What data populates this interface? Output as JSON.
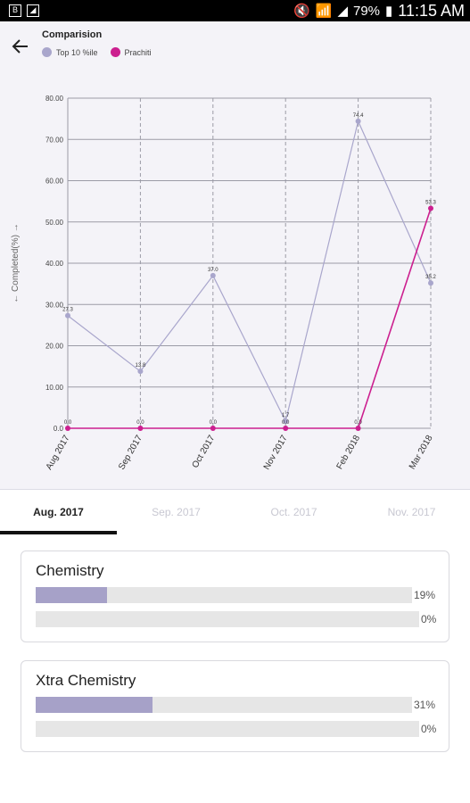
{
  "status_bar": {
    "battery": "79%",
    "time": "11:15 AM"
  },
  "header": {
    "title": "Comparision"
  },
  "legend": [
    {
      "label": "Top 10 %ile",
      "color": "#a9a6cc"
    },
    {
      "label": "Prachiti",
      "color": "#cc1f8f"
    }
  ],
  "chart_data": {
    "type": "line",
    "ylabel": "← Completed(%) →",
    "ylim": [
      0,
      80
    ],
    "yticks": [
      "0.0",
      "10.00",
      "20.00",
      "30.00",
      "40.00",
      "50.00",
      "60.00",
      "70.00",
      "80.00"
    ],
    "categories": [
      "Aug 2017",
      "Sep 2017",
      "Oct 2017",
      "Nov 2017",
      "Feb 2018",
      "Mar 2018"
    ],
    "series": [
      {
        "name": "Top 10 %ile",
        "color": "#a9a6cc",
        "values": [
          27.3,
          13.8,
          37.0,
          1.7,
          74.4,
          35.2
        ],
        "labels": [
          "27.3",
          "13.8",
          "37.0",
          "1.7",
          "74.4",
          "35.2"
        ]
      },
      {
        "name": "Prachiti",
        "color": "#cc1f8f",
        "values": [
          0,
          0,
          0,
          0,
          0,
          53.3
        ],
        "labels": [
          "0.0",
          "0.0",
          "0.0",
          "0.0",
          "0.0",
          "53.3"
        ]
      }
    ]
  },
  "tabs": [
    {
      "label": "Aug. 2017",
      "active": true
    },
    {
      "label": "Sep. 2017",
      "active": false
    },
    {
      "label": "Oct. 2017",
      "active": false
    },
    {
      "label": "Nov. 2017",
      "active": false
    }
  ],
  "subjects": [
    {
      "name": "Chemistry",
      "bars": [
        {
          "value": 19,
          "label": "19%"
        },
        {
          "value": 0,
          "label": "0%"
        }
      ]
    },
    {
      "name": "Xtra Chemistry",
      "bars": [
        {
          "value": 31,
          "label": "31%"
        },
        {
          "value": 0,
          "label": "0%"
        }
      ]
    }
  ]
}
